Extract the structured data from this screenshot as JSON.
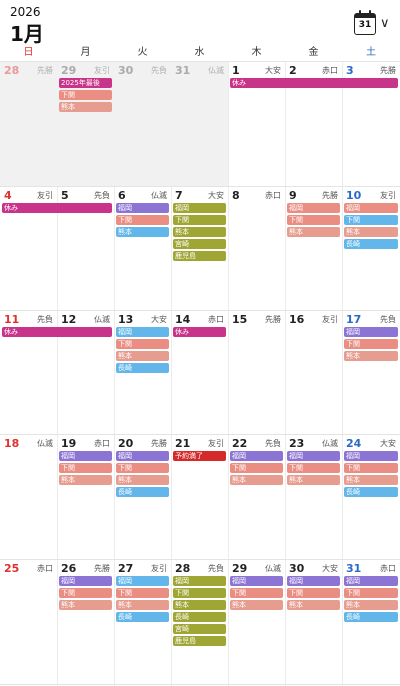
{
  "header": {
    "year": "2026",
    "month": "1月",
    "calendar_icon_day": "31"
  },
  "weekdays": [
    "日",
    "月",
    "火",
    "水",
    "木",
    "金",
    "土"
  ],
  "colors": {
    "sunday": "#e0312e",
    "saturday": "#2a6ac7",
    "holiday": "#c8348a",
    "fukuoka": "#8c74d4",
    "shimonoseki": "#ea8e83",
    "kumamoto": "#e69c8e",
    "nagasaki": "#62b6ea",
    "olive": "#9fa634",
    "booked": "#d42a2a"
  },
  "weeks": [
    {
      "days": [
        {
          "num": "28",
          "rokuyo": "先勝",
          "other": true
        },
        {
          "num": "29",
          "rokuyo": "友引",
          "other": true
        },
        {
          "num": "30",
          "rokuyo": "先負",
          "other": true
        },
        {
          "num": "31",
          "rokuyo": "仏滅",
          "other": true
        },
        {
          "num": "1",
          "rokuyo": "大安",
          "other": false
        },
        {
          "num": "2",
          "rokuyo": "赤口",
          "other": false
        },
        {
          "num": "3",
          "rokuyo": "先勝",
          "other": false
        }
      ],
      "events": [
        {
          "label": "2025年最後",
          "start": 1,
          "span": 1,
          "lane": 0,
          "color": "holiday"
        },
        {
          "label": "休み",
          "start": 4,
          "span": 3,
          "lane": 0,
          "color": "holiday"
        },
        {
          "label": "下関",
          "start": 1,
          "span": 1,
          "lane": 1,
          "color": "shimonoseki"
        },
        {
          "label": "熊本",
          "start": 1,
          "span": 1,
          "lane": 2,
          "color": "kumamoto"
        }
      ]
    },
    {
      "days": [
        {
          "num": "4",
          "rokuyo": "友引",
          "other": false
        },
        {
          "num": "5",
          "rokuyo": "先負",
          "other": false
        },
        {
          "num": "6",
          "rokuyo": "仏滅",
          "other": false
        },
        {
          "num": "7",
          "rokuyo": "大安",
          "other": false
        },
        {
          "num": "8",
          "rokuyo": "赤口",
          "other": false
        },
        {
          "num": "9",
          "rokuyo": "先勝",
          "other": false
        },
        {
          "num": "10",
          "rokuyo": "友引",
          "other": false
        }
      ],
      "events": [
        {
          "label": "休み",
          "start": 0,
          "span": 2,
          "lane": 0,
          "color": "holiday"
        },
        {
          "label": "福岡",
          "start": 2,
          "span": 1,
          "lane": 0,
          "color": "fukuoka"
        },
        {
          "label": "下関",
          "start": 2,
          "span": 1,
          "lane": 1,
          "color": "shimonoseki"
        },
        {
          "label": "熊本",
          "start": 2,
          "span": 1,
          "lane": 2,
          "color": "nagasaki"
        },
        {
          "label": "福岡",
          "start": 3,
          "span": 1,
          "lane": 0,
          "color": "olive"
        },
        {
          "label": "下関",
          "start": 3,
          "span": 1,
          "lane": 1,
          "color": "olive"
        },
        {
          "label": "熊本",
          "start": 3,
          "span": 1,
          "lane": 2,
          "color": "olive"
        },
        {
          "label": "宮崎",
          "start": 3,
          "span": 1,
          "lane": 3,
          "color": "olive"
        },
        {
          "label": "鹿児島",
          "start": 3,
          "span": 1,
          "lane": 4,
          "color": "olive"
        },
        {
          "label": "福岡",
          "start": 5,
          "span": 1,
          "lane": 0,
          "color": "shimonoseki"
        },
        {
          "label": "下関",
          "start": 5,
          "span": 1,
          "lane": 1,
          "color": "shimonoseki"
        },
        {
          "label": "熊本",
          "start": 5,
          "span": 1,
          "lane": 2,
          "color": "kumamoto"
        },
        {
          "label": "福岡",
          "start": 6,
          "span": 1,
          "lane": 0,
          "color": "shimonoseki"
        },
        {
          "label": "下関",
          "start": 6,
          "span": 1,
          "lane": 1,
          "color": "nagasaki"
        },
        {
          "label": "熊本",
          "start": 6,
          "span": 1,
          "lane": 2,
          "color": "kumamoto"
        },
        {
          "label": "長崎",
          "start": 6,
          "span": 1,
          "lane": 3,
          "color": "nagasaki"
        }
      ]
    },
    {
      "days": [
        {
          "num": "11",
          "rokuyo": "先負",
          "other": false
        },
        {
          "num": "12",
          "rokuyo": "仏滅",
          "other": false
        },
        {
          "num": "13",
          "rokuyo": "大安",
          "other": false
        },
        {
          "num": "14",
          "rokuyo": "赤口",
          "other": false
        },
        {
          "num": "15",
          "rokuyo": "先勝",
          "other": false
        },
        {
          "num": "16",
          "rokuyo": "友引",
          "other": false
        },
        {
          "num": "17",
          "rokuyo": "先負",
          "other": false
        }
      ],
      "events": [
        {
          "label": "休み",
          "start": 0,
          "span": 2,
          "lane": 0,
          "color": "holiday"
        },
        {
          "label": "福岡",
          "start": 2,
          "span": 1,
          "lane": 0,
          "color": "nagasaki"
        },
        {
          "label": "下関",
          "start": 2,
          "span": 1,
          "lane": 1,
          "color": "shimonoseki"
        },
        {
          "label": "熊本",
          "start": 2,
          "span": 1,
          "lane": 2,
          "color": "kumamoto"
        },
        {
          "label": "長崎",
          "start": 2,
          "span": 1,
          "lane": 3,
          "color": "nagasaki"
        },
        {
          "label": "休み",
          "start": 3,
          "span": 1,
          "lane": 0,
          "color": "holiday"
        },
        {
          "label": "福岡",
          "start": 6,
          "span": 1,
          "lane": 0,
          "color": "fukuoka"
        },
        {
          "label": "下関",
          "start": 6,
          "span": 1,
          "lane": 1,
          "color": "shimonoseki"
        },
        {
          "label": "熊本",
          "start": 6,
          "span": 1,
          "lane": 2,
          "color": "kumamoto"
        }
      ]
    },
    {
      "days": [
        {
          "num": "18",
          "rokuyo": "仏滅",
          "other": false
        },
        {
          "num": "19",
          "rokuyo": "赤口",
          "other": false
        },
        {
          "num": "20",
          "rokuyo": "先勝",
          "other": false
        },
        {
          "num": "21",
          "rokuyo": "友引",
          "other": false
        },
        {
          "num": "22",
          "rokuyo": "先負",
          "other": false
        },
        {
          "num": "23",
          "rokuyo": "仏滅",
          "other": false
        },
        {
          "num": "24",
          "rokuyo": "大安",
          "other": false
        }
      ],
      "events": [
        {
          "label": "福岡",
          "start": 1,
          "span": 1,
          "lane": 0,
          "color": "fukuoka"
        },
        {
          "label": "下関",
          "start": 1,
          "span": 1,
          "lane": 1,
          "color": "shimonoseki"
        },
        {
          "label": "熊本",
          "start": 1,
          "span": 1,
          "lane": 2,
          "color": "kumamoto"
        },
        {
          "label": "福岡",
          "start": 2,
          "span": 1,
          "lane": 0,
          "color": "fukuoka"
        },
        {
          "label": "下関",
          "start": 2,
          "span": 1,
          "lane": 1,
          "color": "shimonoseki"
        },
        {
          "label": "熊本",
          "start": 2,
          "span": 1,
          "lane": 2,
          "color": "kumamoto"
        },
        {
          "label": "長崎",
          "start": 2,
          "span": 1,
          "lane": 3,
          "color": "nagasaki"
        },
        {
          "label": "予約満了",
          "start": 3,
          "span": 1,
          "lane": 0,
          "color": "booked"
        },
        {
          "label": "福岡",
          "start": 4,
          "span": 1,
          "lane": 0,
          "color": "fukuoka"
        },
        {
          "label": "下関",
          "start": 4,
          "span": 1,
          "lane": 1,
          "color": "shimonoseki"
        },
        {
          "label": "熊本",
          "start": 4,
          "span": 1,
          "lane": 2,
          "color": "kumamoto"
        },
        {
          "label": "福岡",
          "start": 5,
          "span": 1,
          "lane": 0,
          "color": "fukuoka"
        },
        {
          "label": "下関",
          "start": 5,
          "span": 1,
          "lane": 1,
          "color": "shimonoseki"
        },
        {
          "label": "熊本",
          "start": 5,
          "span": 1,
          "lane": 2,
          "color": "kumamoto"
        },
        {
          "label": "福岡",
          "start": 6,
          "span": 1,
          "lane": 0,
          "color": "fukuoka"
        },
        {
          "label": "下関",
          "start": 6,
          "span": 1,
          "lane": 1,
          "color": "shimonoseki"
        },
        {
          "label": "熊本",
          "start": 6,
          "span": 1,
          "lane": 2,
          "color": "kumamoto"
        },
        {
          "label": "長崎",
          "start": 6,
          "span": 1,
          "lane": 3,
          "color": "nagasaki"
        }
      ]
    },
    {
      "days": [
        {
          "num": "25",
          "rokuyo": "赤口",
          "other": false
        },
        {
          "num": "26",
          "rokuyo": "先勝",
          "other": false
        },
        {
          "num": "27",
          "rokuyo": "友引",
          "other": false
        },
        {
          "num": "28",
          "rokuyo": "先負",
          "other": false
        },
        {
          "num": "29",
          "rokuyo": "仏滅",
          "other": false
        },
        {
          "num": "30",
          "rokuyo": "大安",
          "other": false
        },
        {
          "num": "31",
          "rokuyo": "赤口",
          "other": false
        }
      ],
      "events": [
        {
          "label": "福岡",
          "start": 1,
          "span": 1,
          "lane": 0,
          "color": "fukuoka"
        },
        {
          "label": "下関",
          "start": 1,
          "span": 1,
          "lane": 1,
          "color": "shimonoseki"
        },
        {
          "label": "熊本",
          "start": 1,
          "span": 1,
          "lane": 2,
          "color": "kumamoto"
        },
        {
          "label": "福岡",
          "start": 2,
          "span": 1,
          "lane": 0,
          "color": "nagasaki"
        },
        {
          "label": "下関",
          "start": 2,
          "span": 1,
          "lane": 1,
          "color": "shimonoseki"
        },
        {
          "label": "熊本",
          "start": 2,
          "span": 1,
          "lane": 2,
          "color": "kumamoto"
        },
        {
          "label": "長崎",
          "start": 2,
          "span": 1,
          "lane": 3,
          "color": "nagasaki"
        },
        {
          "label": "福岡",
          "start": 3,
          "span": 1,
          "lane": 0,
          "color": "olive"
        },
        {
          "label": "下関",
          "start": 3,
          "span": 1,
          "lane": 1,
          "color": "olive"
        },
        {
          "label": "熊本",
          "start": 3,
          "span": 1,
          "lane": 2,
          "color": "olive"
        },
        {
          "label": "長崎",
          "start": 3,
          "span": 1,
          "lane": 3,
          "color": "olive"
        },
        {
          "label": "宮崎",
          "start": 3,
          "span": 1,
          "lane": 4,
          "color": "olive"
        },
        {
          "label": "鹿児島",
          "start": 3,
          "span": 1,
          "lane": 5,
          "color": "olive"
        },
        {
          "label": "福岡",
          "start": 4,
          "span": 1,
          "lane": 0,
          "color": "fukuoka"
        },
        {
          "label": "下関",
          "start": 4,
          "span": 1,
          "lane": 1,
          "color": "shimonoseki"
        },
        {
          "label": "熊本",
          "start": 4,
          "span": 1,
          "lane": 2,
          "color": "kumamoto"
        },
        {
          "label": "福岡",
          "start": 5,
          "span": 1,
          "lane": 0,
          "color": "fukuoka"
        },
        {
          "label": "下関",
          "start": 5,
          "span": 1,
          "lane": 1,
          "color": "shimonoseki"
        },
        {
          "label": "熊本",
          "start": 5,
          "span": 1,
          "lane": 2,
          "color": "kumamoto"
        },
        {
          "label": "福岡",
          "start": 6,
          "span": 1,
          "lane": 0,
          "color": "fukuoka"
        },
        {
          "label": "下関",
          "start": 6,
          "span": 1,
          "lane": 1,
          "color": "shimonoseki"
        },
        {
          "label": "熊本",
          "start": 6,
          "span": 1,
          "lane": 2,
          "color": "kumamoto"
        },
        {
          "label": "長崎",
          "start": 6,
          "span": 1,
          "lane": 3,
          "color": "nagasaki"
        }
      ]
    }
  ]
}
